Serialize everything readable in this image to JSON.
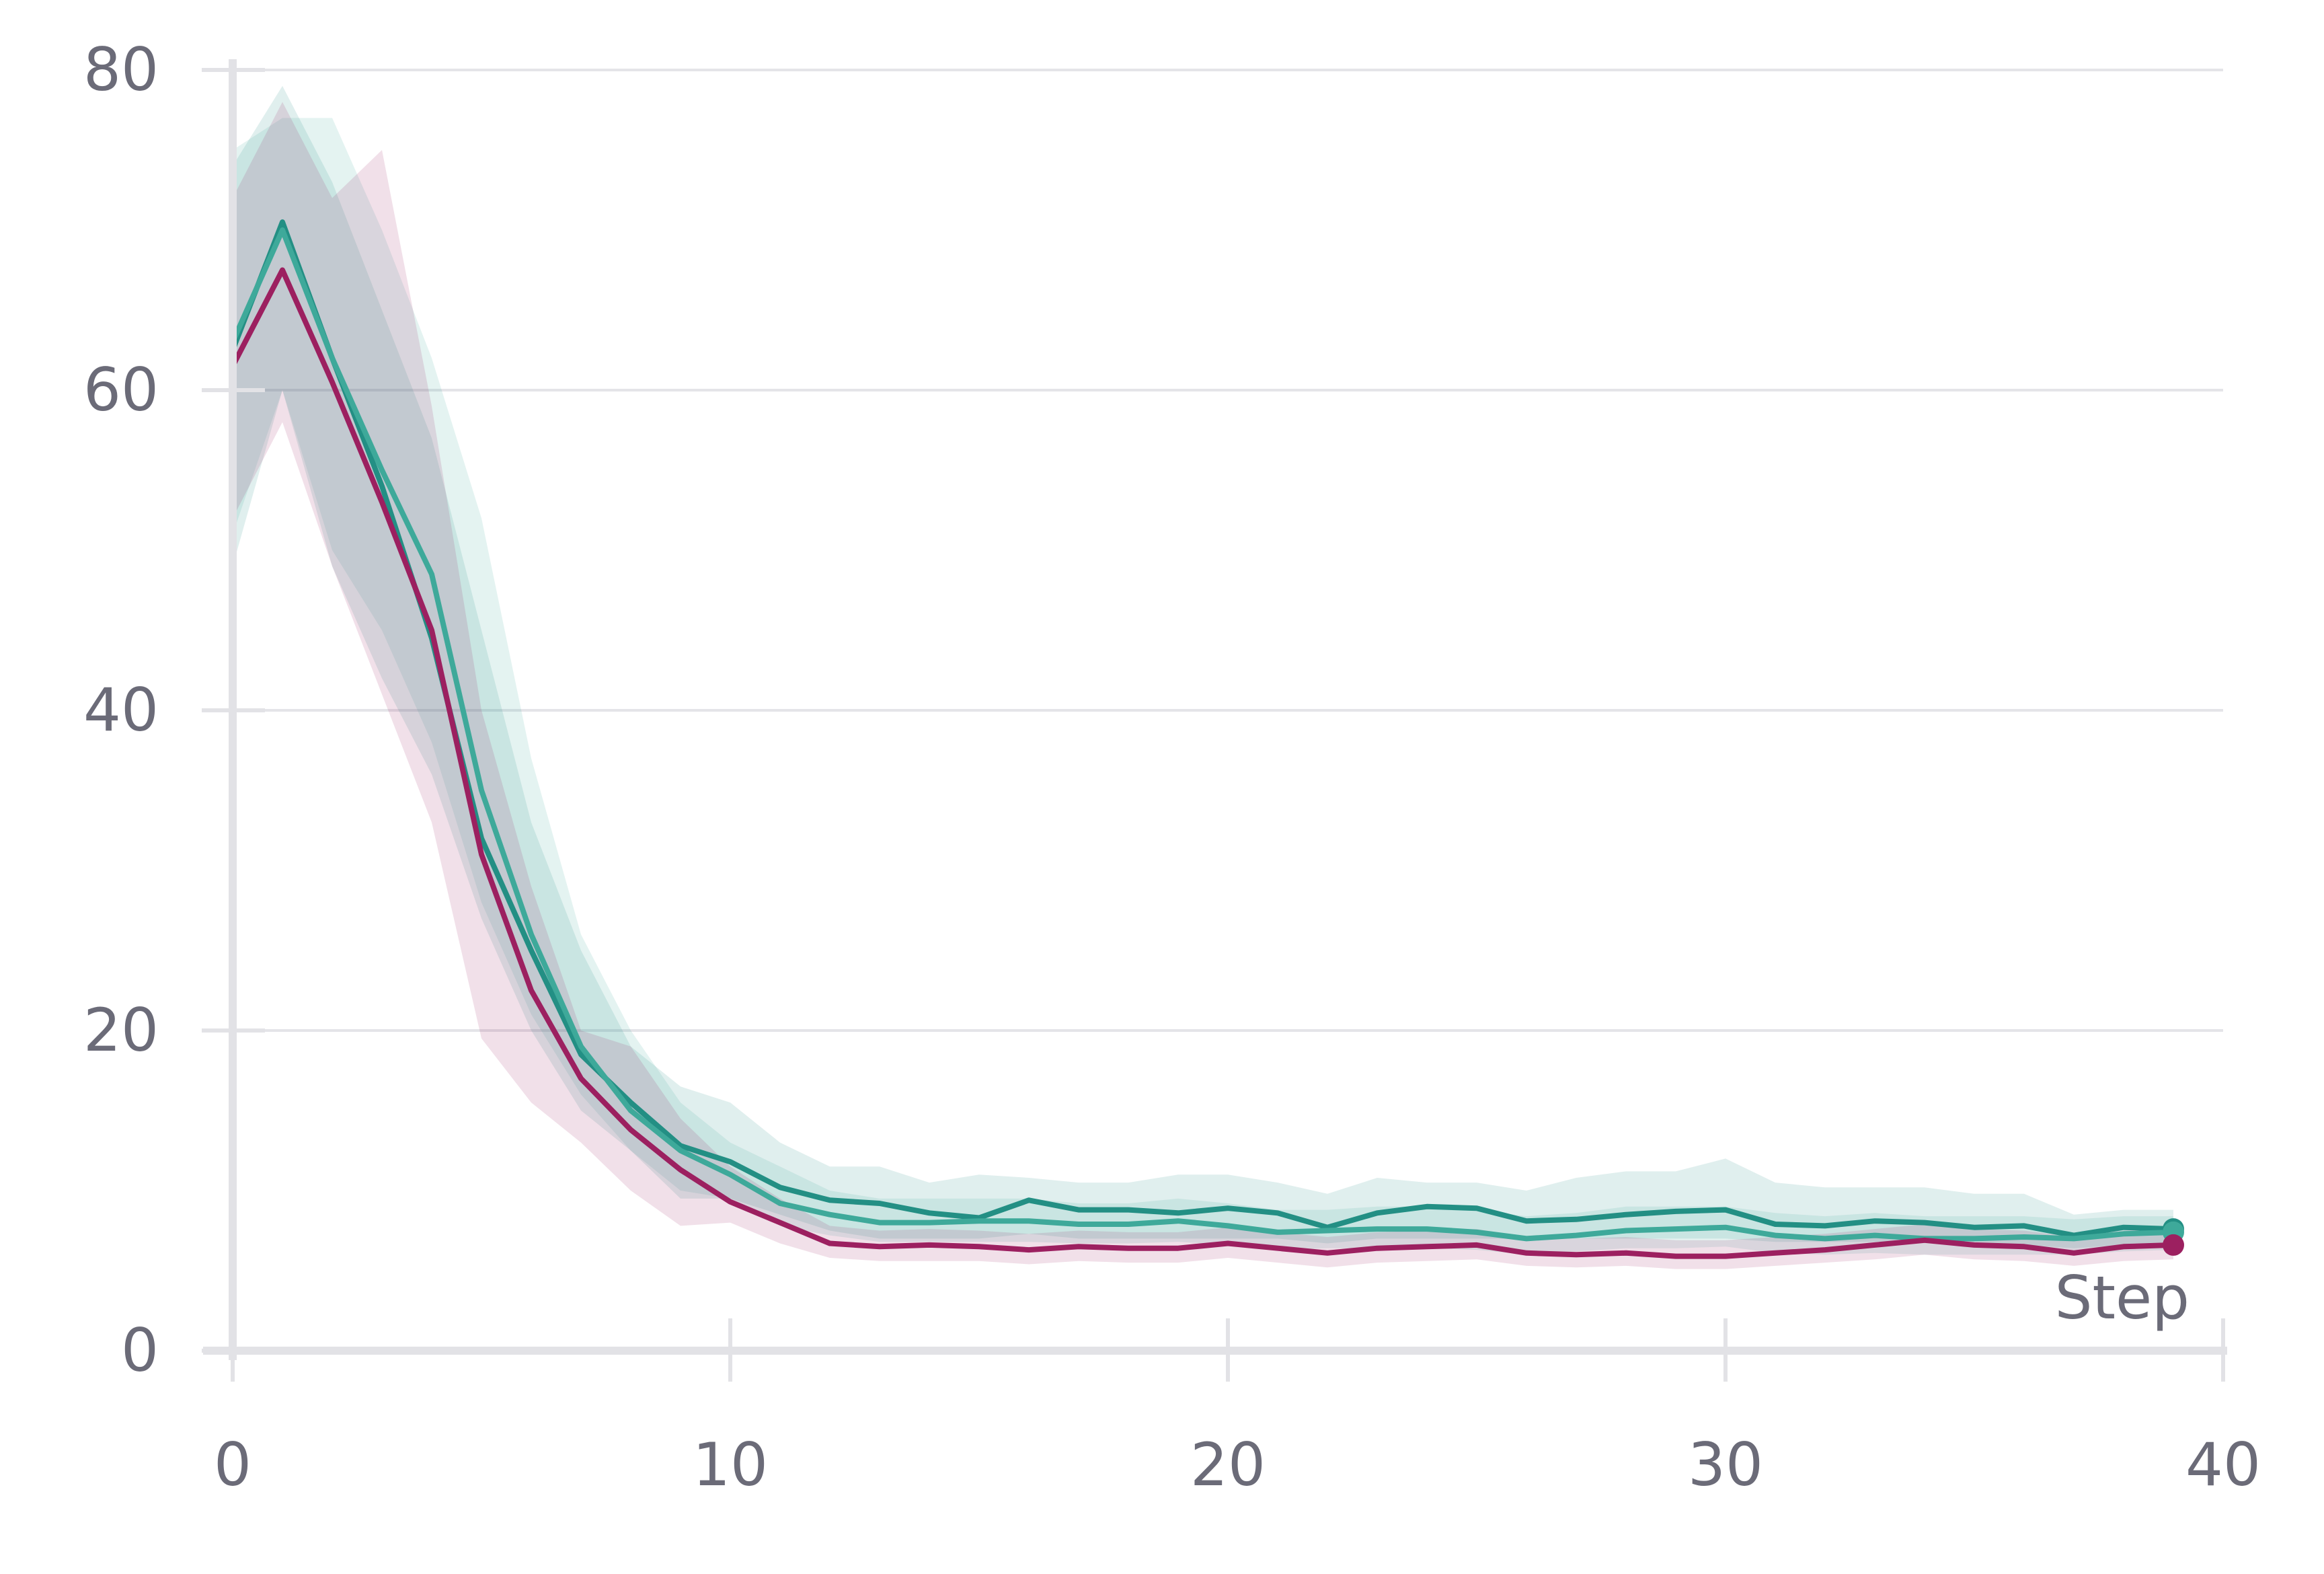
{
  "chart_data": {
    "type": "line",
    "title": "",
    "xlabel": "Step",
    "ylabel": "",
    "xlim": [
      0,
      40
    ],
    "ylim": [
      0,
      80
    ],
    "x_ticks": [
      0,
      10,
      20,
      30,
      40
    ],
    "y_ticks": [
      0,
      20,
      40,
      60,
      80
    ],
    "grid": "horizontal",
    "legend": "none",
    "x": [
      0,
      1,
      2,
      3,
      4,
      5,
      6,
      7,
      8,
      9,
      10,
      11,
      12,
      13,
      14,
      15,
      16,
      17,
      18,
      19,
      20,
      21,
      22,
      23,
      24,
      25,
      26,
      27,
      28,
      29,
      30,
      31,
      32,
      33,
      34,
      35,
      36,
      37,
      38,
      39
    ],
    "series": [
      {
        "color": "#238f84",
        "values": [
          62.5,
          70.5,
          62,
          54,
          44.5,
          32,
          25,
          18.5,
          15.5,
          12.8,
          11.8,
          10.2,
          9.4,
          9.2,
          8.6,
          8.3,
          9.4,
          8.8,
          8.8,
          8.6,
          8.9,
          8.6,
          7.7,
          8.6,
          9.0,
          8.9,
          8.1,
          8.2,
          8.5,
          8.7,
          8.8,
          7.9,
          7.8,
          8.1,
          8.0,
          7.7,
          7.8,
          7.2,
          7.7,
          7.6
        ],
        "lower": [
          49,
          60,
          49,
          42,
          36,
          27,
          20,
          15,
          12.5,
          9.5,
          9.5,
          8.5,
          7.5,
          7.0,
          7.0,
          7.0,
          7.3,
          7.0,
          7.0,
          7.0,
          7.0,
          7.0,
          6.7,
          7.0,
          7.0,
          7.0,
          7.0,
          7.0,
          7.0,
          7.0,
          7.0,
          6.8,
          6.8,
          6.8,
          6.8,
          6.8,
          6.6,
          6.4,
          6.6,
          6.8
        ],
        "upper": [
          74,
          79,
          73,
          65,
          57,
          45,
          33,
          25,
          19,
          16.5,
          15.5,
          13,
          11.5,
          11.5,
          10.5,
          11,
          10.8,
          10.5,
          10.5,
          11,
          11,
          10.5,
          9.8,
          10.8,
          10.5,
          10.5,
          10,
          10.8,
          11.2,
          11.2,
          12,
          10.5,
          10.2,
          10.2,
          10.2,
          9.8,
          9.8,
          8.5,
          8.8,
          8.8
        ]
      },
      {
        "color": "#3ea99a",
        "values": [
          63,
          70,
          62,
          55,
          48.5,
          35,
          26,
          19,
          15,
          12.5,
          11,
          9.2,
          8.5,
          8.0,
          8.0,
          8.1,
          8.1,
          7.9,
          7.9,
          8.1,
          7.8,
          7.4,
          7.5,
          7.6,
          7.6,
          7.4,
          7.0,
          7.2,
          7.5,
          7.6,
          7.7,
          7.2,
          7.0,
          7.2,
          7.0,
          7.0,
          7.1,
          7.0,
          7.3,
          7.4
        ],
        "lower": [
          51,
          60,
          50,
          45,
          38,
          28,
          21,
          16,
          12.5,
          10,
          9.5,
          7.8,
          7.2,
          6.8,
          6.8,
          6.8,
          6.8,
          6.7,
          6.7,
          6.8,
          6.6,
          6.3,
          6.4,
          6.4,
          6.4,
          6.3,
          6.0,
          6.2,
          6.4,
          6.4,
          6.5,
          6.1,
          6.0,
          6.1,
          6.0,
          6.0,
          6.0,
          6.0,
          6.2,
          6.3
        ],
        "upper": [
          75,
          77,
          77,
          70,
          62,
          52,
          37,
          26,
          20,
          15.5,
          13,
          11.5,
          10,
          9.5,
          9.5,
          9.5,
          9.5,
          9.2,
          9.2,
          9.5,
          9.2,
          8.8,
          8.8,
          9.0,
          9.0,
          8.8,
          8.4,
          8.6,
          9.0,
          9.0,
          9.0,
          8.6,
          8.4,
          8.6,
          8.4,
          8.4,
          8.4,
          8.2,
          8.4,
          8.4
        ]
      },
      {
        "color": "#9c2060",
        "values": [
          61.5,
          67.5,
          60.5,
          53,
          45,
          31,
          22.5,
          17,
          13.8,
          11.3,
          9.3,
          8.0,
          6.7,
          6.5,
          6.6,
          6.5,
          6.3,
          6.5,
          6.4,
          6.4,
          6.7,
          6.4,
          6.1,
          6.4,
          6.5,
          6.6,
          6.1,
          6.0,
          6.1,
          5.9,
          5.9,
          6.1,
          6.3,
          6.6,
          6.9,
          6.6,
          6.5,
          6.1,
          6.5,
          6.6
        ],
        "lower": [
          52,
          58,
          49,
          41,
          33,
          19.5,
          15.5,
          13,
          10,
          7.8,
          8.0,
          6.7,
          5.8,
          5.6,
          5.6,
          5.6,
          5.4,
          5.6,
          5.5,
          5.5,
          5.8,
          5.5,
          5.2,
          5.5,
          5.6,
          5.7,
          5.3,
          5.2,
          5.3,
          5.1,
          5.1,
          5.3,
          5.5,
          5.7,
          6.0,
          5.7,
          5.6,
          5.3,
          5.6,
          5.7
        ],
        "upper": [
          72,
          78,
          72,
          75,
          59,
          40,
          29,
          20,
          19,
          14.5,
          11.5,
          9.5,
          7.8,
          7.5,
          7.6,
          7.5,
          7.3,
          7.5,
          7.4,
          7.4,
          7.7,
          7.4,
          7.1,
          7.4,
          7.5,
          7.6,
          7.1,
          7.0,
          7.1,
          6.9,
          6.9,
          7.1,
          7.3,
          7.6,
          7.9,
          7.6,
          7.5,
          7.1,
          7.5,
          7.6
        ]
      }
    ]
  }
}
